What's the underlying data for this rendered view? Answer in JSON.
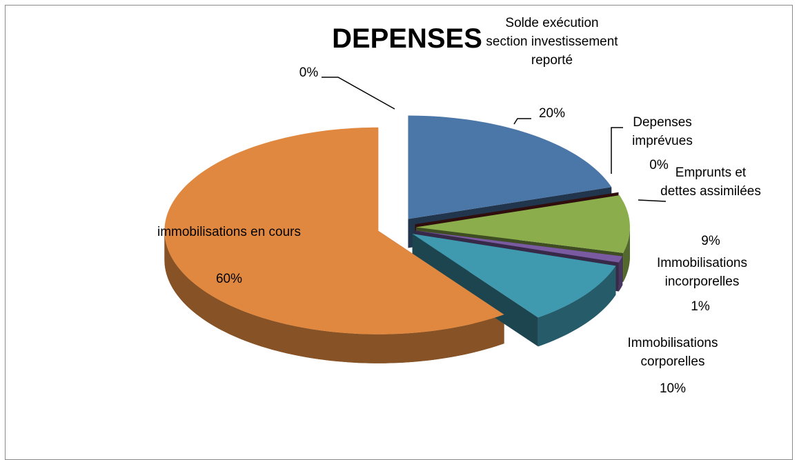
{
  "chart_data": {
    "type": "pie",
    "title": "DEPENSES",
    "categories": [
      "Solde exécution section investissement reporté",
      "Depenses imprévues",
      "Emprunts et dettes assimilées",
      "Immobilisations incorporelles",
      "Immobilisations corporelles",
      "immobilisations en cours",
      null
    ],
    "values": [
      20,
      0,
      9,
      1,
      10,
      60,
      0
    ],
    "value_labels": [
      "20%",
      "0%",
      "9%",
      "1%",
      "10%",
      "60%",
      "0%"
    ],
    "colors": [
      "#4a76a8",
      "#6b1e1c",
      "#8bad4c",
      "#7a5aa0",
      "#3f9ab0",
      "#e08840",
      "#2c4d75"
    ]
  }
}
